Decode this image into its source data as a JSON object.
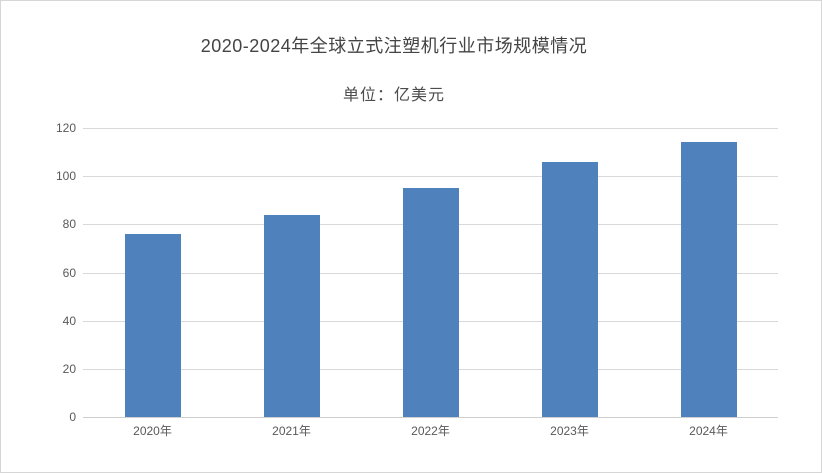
{
  "page": {
    "background": "#ffffff",
    "frame_border_color": "#d6d6d6"
  },
  "header": {
    "title": "2020-2024年全球立式注塑机行业市场规模情况",
    "subtitle": "单位：亿美元"
  },
  "chart_data": {
    "type": "bar",
    "title": "2020-2024年全球立式注塑机行业市场规模情况",
    "subtitle": "单位：亿美元",
    "categories": [
      "2020年",
      "2021年",
      "2022年",
      "2023年",
      "2024年"
    ],
    "values": [
      76,
      84,
      95,
      106,
      114
    ],
    "xlabel": "",
    "ylabel": "",
    "ylim": [
      0,
      120
    ],
    "yticks": [
      0,
      20,
      40,
      60,
      80,
      100,
      120
    ],
    "grid": true,
    "legend_position": "none",
    "bar_color": "#4f81bd",
    "gridline_color": "#d9d9d9",
    "axis_line_color": "#cfcfcf",
    "tick_label_color": "#595959",
    "title_color": "#444444"
  }
}
